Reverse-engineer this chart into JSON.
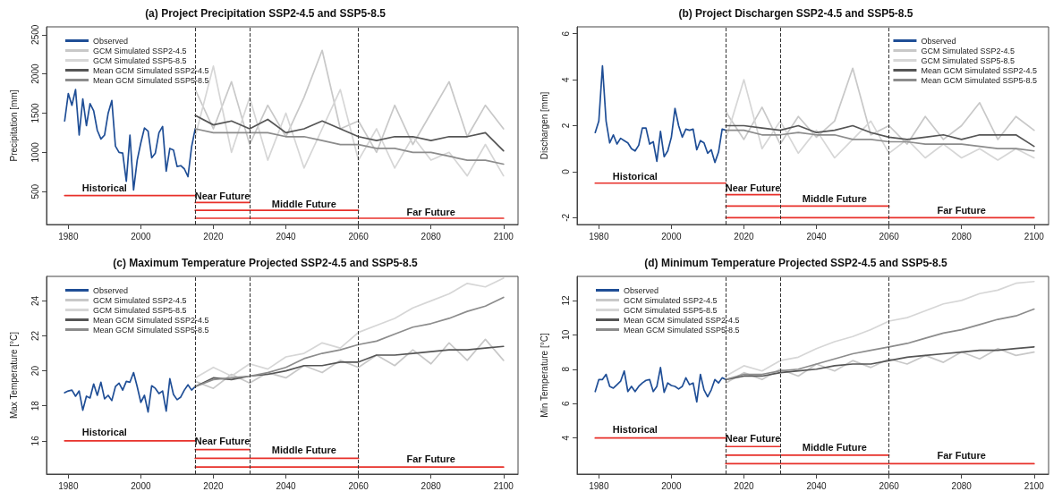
{
  "chart_data": [
    {
      "type": "line",
      "title": "(a) Project Precipitation SSP2-4.5 and SSP5-8.5",
      "ylabel": "Precipitation [mm]",
      "xlim": [
        1974,
        2104
      ],
      "xticks": [
        1980,
        2000,
        2020,
        2040,
        2060,
        2080,
        2100
      ],
      "ylim": [
        80,
        2600
      ],
      "yticks": [
        500,
        1000,
        1500,
        2000,
        2500
      ],
      "legend": "top left",
      "line_style": "solid",
      "series": [
        {
          "name": "Observed",
          "color": "#1f4e96",
          "x": [
            1979,
            1980,
            1981,
            1982,
            1983,
            1984,
            1985,
            1986,
            1987,
            1988,
            1989,
            1990,
            1991,
            1992,
            1993,
            1994,
            1995,
            1996,
            1997,
            1998,
            1999,
            2000,
            2001,
            2002,
            2003,
            2004,
            2005,
            2006,
            2007,
            2008,
            2009,
            2010,
            2011,
            2012,
            2013,
            2014,
            2015
          ],
          "values": [
            1400,
            1750,
            1600,
            1800,
            1220,
            1680,
            1340,
            1620,
            1530,
            1280,
            1170,
            1220,
            1500,
            1660,
            1080,
            1000,
            990,
            630,
            1220,
            520,
            900,
            1120,
            1310,
            1270,
            930,
            990,
            1250,
            1330,
            760,
            1050,
            1030,
            820,
            830,
            790,
            690,
            1070,
            1300
          ]
        },
        {
          "name": "GCM Simulated SSP2-4.5",
          "color": "#c8c8c8",
          "x": [
            2015,
            2020,
            2025,
            2030,
            2035,
            2040,
            2045,
            2050,
            2055,
            2060,
            2065,
            2070,
            2075,
            2080,
            2085,
            2090,
            2095,
            2100
          ],
          "values": [
            1800,
            1300,
            1900,
            1100,
            1600,
            1200,
            1700,
            2300,
            1300,
            1400,
            1000,
            1600,
            1100,
            1500,
            1900,
            1200,
            1600,
            1300
          ]
        },
        {
          "name": "GCM Simulated SSP5-8.5",
          "color": "#d6d6d6",
          "x": [
            2015,
            2020,
            2025,
            2030,
            2035,
            2040,
            2045,
            2050,
            2055,
            2060,
            2065,
            2070,
            2075,
            2080,
            2085,
            2090,
            2095,
            2100
          ],
          "values": [
            1200,
            2100,
            1000,
            1700,
            900,
            1500,
            800,
            1300,
            1800,
            900,
            1300,
            800,
            1200,
            900,
            1000,
            700,
            1100,
            700
          ]
        },
        {
          "name": "Mean GCM Simulated SSP2-4.5",
          "color": "#555555",
          "x": [
            2015,
            2020,
            2025,
            2030,
            2035,
            2040,
            2045,
            2050,
            2055,
            2060,
            2065,
            2070,
            2075,
            2080,
            2085,
            2090,
            2095,
            2100
          ],
          "values": [
            1470,
            1350,
            1400,
            1300,
            1420,
            1250,
            1300,
            1400,
            1300,
            1200,
            1150,
            1200,
            1200,
            1150,
            1200,
            1200,
            1250,
            1020
          ]
        },
        {
          "name": "Mean GCM Simulated SSP5-8.5",
          "color": "#8c8c8c",
          "x": [
            2015,
            2020,
            2025,
            2030,
            2035,
            2040,
            2045,
            2050,
            2055,
            2060,
            2065,
            2070,
            2075,
            2080,
            2085,
            2090,
            2095,
            2100
          ],
          "values": [
            1300,
            1250,
            1250,
            1250,
            1250,
            1200,
            1200,
            1150,
            1100,
            1100,
            1050,
            1050,
            1000,
            1000,
            950,
            900,
            900,
            850
          ]
        },
        {
          "color": "#e8302a",
          "x": [
            1979,
            2015
          ],
          "values": [
            450,
            450
          ]
        },
        {
          "color": "#e8302a",
          "x": [
            2015,
            2030
          ],
          "values": [
            360,
            360
          ]
        },
        {
          "color": "#e8302a",
          "x": [
            2015,
            2060
          ],
          "values": [
            260,
            260
          ]
        },
        {
          "color": "#e8302a",
          "x": [
            2015,
            2100
          ],
          "values": [
            160,
            160
          ]
        }
      ],
      "ref_lines": [
        {
          "axis": "x",
          "value": 2015,
          "color": "#333333",
          "line_style": "dashed"
        },
        {
          "axis": "x",
          "value": 2030,
          "color": "#333333",
          "line_style": "dashed"
        },
        {
          "axis": "x",
          "value": 2060,
          "color": "#333333",
          "line_style": "dashed"
        }
      ],
      "annotations": [
        {
          "text": "Historical",
          "x": 1990,
          "y": 480
        },
        {
          "text": "Near Future",
          "x": 2022.5,
          "y": 380
        },
        {
          "text": "Middle Future",
          "x": 2045,
          "y": 280
        },
        {
          "text": "Far Future",
          "x": 2080,
          "y": 180
        }
      ]
    },
    {
      "type": "line",
      "title": "(b) Project Dischargen SSP2-4.5 and SSP5-8.5",
      "ylabel": "Dischargen [mm]",
      "xlim": [
        1974,
        2104
      ],
      "xticks": [
        1980,
        2000,
        2020,
        2040,
        2060,
        2080,
        2100
      ],
      "ylim": [
        -2.3,
        6.3
      ],
      "yticks": [
        -2,
        0,
        2,
        4,
        6
      ],
      "legend": "top right",
      "line_style": "solid",
      "series": [
        {
          "name": "Observed",
          "color": "#1f4e96",
          "x": [
            1979,
            1980,
            1981,
            1982,
            1983,
            1984,
            1985,
            1986,
            1987,
            1988,
            1989,
            1990,
            1991,
            1992,
            1993,
            1994,
            1995,
            1996,
            1997,
            1998,
            1999,
            2000,
            2001,
            2002,
            2003,
            2004,
            2005,
            2006,
            2007,
            2008,
            2009,
            2010,
            2011,
            2012,
            2013,
            2014,
            2015
          ],
          "values": [
            1.7,
            2.2,
            4.6,
            2.2,
            1.25,
            1.6,
            1.2,
            1.45,
            1.35,
            1.25,
            1.0,
            0.9,
            1.15,
            1.9,
            1.9,
            1.2,
            1.3,
            0.45,
            1.75,
            0.65,
            0.9,
            1.5,
            2.75,
            2.0,
            1.5,
            1.85,
            1.8,
            1.85,
            0.95,
            1.35,
            1.25,
            0.8,
            0.95,
            0.4,
            0.85,
            1.85,
            1.8
          ]
        },
        {
          "name": "GCM Simulated SSP2-4.5",
          "color": "#c8c8c8",
          "x": [
            2015,
            2020,
            2025,
            2030,
            2035,
            2040,
            2045,
            2050,
            2055,
            2060,
            2065,
            2070,
            2075,
            2080,
            2085,
            2090,
            2095,
            2100
          ],
          "values": [
            2.6,
            1.4,
            2.8,
            1.2,
            2.4,
            1.5,
            2.2,
            4.5,
            1.6,
            2.0,
            1.2,
            2.4,
            1.4,
            2.0,
            3.0,
            1.4,
            2.4,
            1.8
          ]
        },
        {
          "name": "GCM Simulated SSP5-8.5",
          "color": "#d6d6d6",
          "x": [
            2015,
            2020,
            2025,
            2030,
            2035,
            2040,
            2045,
            2050,
            2055,
            2060,
            2065,
            2070,
            2075,
            2080,
            2085,
            2090,
            2095,
            2100
          ],
          "values": [
            1.4,
            4.0,
            1.0,
            2.2,
            0.8,
            1.8,
            0.6,
            1.4,
            2.2,
            0.8,
            1.4,
            0.6,
            1.2,
            0.6,
            1.0,
            0.5,
            1.0,
            0.6
          ]
        },
        {
          "name": "Mean GCM Simulated SSP2-4.5",
          "color": "#555555",
          "x": [
            2015,
            2020,
            2025,
            2030,
            2035,
            2040,
            2045,
            2050,
            2055,
            2060,
            2065,
            2070,
            2075,
            2080,
            2085,
            2090,
            2095,
            2100
          ],
          "values": [
            2.0,
            2.0,
            1.9,
            1.8,
            2.0,
            1.7,
            1.8,
            2.0,
            1.7,
            1.5,
            1.4,
            1.5,
            1.6,
            1.4,
            1.6,
            1.6,
            1.6,
            1.1
          ]
        },
        {
          "name": "Mean GCM Simulated SSP5-8.5",
          "color": "#8c8c8c",
          "x": [
            2015,
            2020,
            2025,
            2030,
            2035,
            2040,
            2045,
            2050,
            2055,
            2060,
            2065,
            2070,
            2075,
            2080,
            2085,
            2090,
            2095,
            2100
          ],
          "values": [
            1.8,
            1.8,
            1.6,
            1.6,
            1.7,
            1.6,
            1.6,
            1.4,
            1.4,
            1.3,
            1.3,
            1.2,
            1.2,
            1.2,
            1.1,
            1.0,
            1.0,
            0.9
          ]
        },
        {
          "color": "#e8302a",
          "x": [
            1979,
            2015
          ],
          "values": [
            -0.5,
            -0.5
          ]
        },
        {
          "color": "#e8302a",
          "x": [
            2015,
            2030
          ],
          "values": [
            -1.0,
            -1.0
          ]
        },
        {
          "color": "#e8302a",
          "x": [
            2015,
            2060
          ],
          "values": [
            -1.5,
            -1.5
          ]
        },
        {
          "color": "#e8302a",
          "x": [
            2015,
            2100
          ],
          "values": [
            -2.0,
            -2.0
          ]
        }
      ],
      "ref_lines": [
        {
          "axis": "x",
          "value": 2015,
          "color": "#333333",
          "line_style": "dashed"
        },
        {
          "axis": "x",
          "value": 2030,
          "color": "#333333",
          "line_style": "dashed"
        },
        {
          "axis": "x",
          "value": 2060,
          "color": "#333333",
          "line_style": "dashed"
        }
      ],
      "annotations": [
        {
          "text": "Historical",
          "x": 1990,
          "y": -0.4
        },
        {
          "text": "Near Future",
          "x": 2022.5,
          "y": -0.9
        },
        {
          "text": "Middle Future",
          "x": 2045,
          "y": -1.4
        },
        {
          "text": "Far Future",
          "x": 2080,
          "y": -1.9
        }
      ]
    },
    {
      "type": "line",
      "title": "(c) Maximum Temperature Projected SSP2-4.5 and SSP5-8.5",
      "ylabel": "Max Temperature [°C]",
      "xlim": [
        1974,
        2104
      ],
      "xticks": [
        1980,
        2000,
        2020,
        2040,
        2060,
        2080,
        2100
      ],
      "ylim": [
        14.1,
        25.4
      ],
      "yticks": [
        16,
        18,
        20,
        22,
        24
      ],
      "legend": "top left",
      "line_style": "solid",
      "series": [
        {
          "name": "Observed",
          "color": "#1f4e96",
          "x": [
            1979,
            1980,
            1981,
            1982,
            1983,
            1984,
            1985,
            1986,
            1987,
            1988,
            1989,
            1990,
            1991,
            1992,
            1993,
            1994,
            1995,
            1996,
            1997,
            1998,
            1999,
            2000,
            2001,
            2002,
            2003,
            2004,
            2005,
            2006,
            2007,
            2008,
            2009,
            2010,
            2011,
            2012,
            2013,
            2014,
            2015
          ],
          "values": [
            18.75,
            18.85,
            18.9,
            18.55,
            18.85,
            17.75,
            18.55,
            18.45,
            19.25,
            18.6,
            19.35,
            18.4,
            18.6,
            18.3,
            19.1,
            19.3,
            18.9,
            19.4,
            19.35,
            19.9,
            19.1,
            18.2,
            18.6,
            17.65,
            19.15,
            19.0,
            18.7,
            18.85,
            17.7,
            19.55,
            18.65,
            18.35,
            18.5,
            18.9,
            19.2,
            18.9,
            19.1
          ]
        },
        {
          "name": "GCM Simulated SSP2-4.5",
          "color": "#c8c8c8",
          "x": [
            2015,
            2020,
            2025,
            2030,
            2035,
            2040,
            2045,
            2050,
            2055,
            2060,
            2065,
            2070,
            2075,
            2080,
            2085,
            2090,
            2095,
            2100
          ],
          "values": [
            19.4,
            19.0,
            19.8,
            19.3,
            19.9,
            19.6,
            20.3,
            19.9,
            20.6,
            20.2,
            20.9,
            20.3,
            21.2,
            20.4,
            21.6,
            20.6,
            21.8,
            20.6
          ]
        },
        {
          "name": "GCM Simulated SSP5-8.5",
          "color": "#d6d6d6",
          "x": [
            2015,
            2020,
            2025,
            2030,
            2035,
            2040,
            2045,
            2050,
            2055,
            2060,
            2065,
            2070,
            2075,
            2080,
            2085,
            2090,
            2095,
            2100
          ],
          "values": [
            19.6,
            20.2,
            19.7,
            20.4,
            20.1,
            20.8,
            21.0,
            21.6,
            21.3,
            22.2,
            22.6,
            23.0,
            23.6,
            24.0,
            24.4,
            25.0,
            24.8,
            25.3
          ]
        },
        {
          "name": "Mean GCM Simulated SSP2-4.5",
          "color": "#555555",
          "x": [
            2015,
            2020,
            2025,
            2030,
            2035,
            2040,
            2045,
            2050,
            2055,
            2060,
            2065,
            2070,
            2075,
            2080,
            2085,
            2090,
            2095,
            2100
          ],
          "values": [
            19.1,
            19.6,
            19.5,
            19.7,
            19.8,
            20.0,
            20.3,
            20.3,
            20.5,
            20.5,
            20.9,
            20.9,
            21.0,
            21.1,
            21.2,
            21.2,
            21.3,
            21.4
          ]
        },
        {
          "name": "Mean GCM Simulated SSP5-8.5",
          "color": "#8c8c8c",
          "x": [
            2015,
            2020,
            2025,
            2030,
            2035,
            2040,
            2045,
            2050,
            2055,
            2060,
            2065,
            2070,
            2075,
            2080,
            2085,
            2090,
            2095,
            2100
          ],
          "values": [
            19.1,
            19.5,
            19.6,
            19.7,
            19.9,
            20.2,
            20.7,
            21.0,
            21.2,
            21.5,
            21.7,
            22.1,
            22.5,
            22.7,
            23.0,
            23.4,
            23.7,
            24.2
          ]
        },
        {
          "color": "#e8302a",
          "x": [
            1979,
            2015
          ],
          "values": [
            16,
            16
          ]
        },
        {
          "color": "#e8302a",
          "x": [
            2015,
            2030
          ],
          "values": [
            15.5,
            15.5
          ]
        },
        {
          "color": "#e8302a",
          "x": [
            2015,
            2060
          ],
          "values": [
            15.0,
            15.0
          ]
        },
        {
          "color": "#e8302a",
          "x": [
            2015,
            2100
          ],
          "values": [
            14.5,
            14.5
          ]
        }
      ],
      "ref_lines": [
        {
          "axis": "x",
          "value": 2015,
          "color": "#333333",
          "line_style": "dashed"
        },
        {
          "axis": "x",
          "value": 2030,
          "color": "#333333",
          "line_style": "dashed"
        },
        {
          "axis": "x",
          "value": 2060,
          "color": "#333333",
          "line_style": "dashed"
        }
      ],
      "annotations": [
        {
          "text": "Historical",
          "x": 1990,
          "y": 16.2
        },
        {
          "text": "Near Future",
          "x": 2022.5,
          "y": 15.7
        },
        {
          "text": "Middle Future",
          "x": 2045,
          "y": 15.2
        },
        {
          "text": "Far Future",
          "x": 2080,
          "y": 14.7
        }
      ]
    },
    {
      "type": "line",
      "title": "(d) Minimum Temperature Projected SSP2-4.5 and SSP5-8.5",
      "ylabel": "Min Temperature [°C]",
      "xlim": [
        1974,
        2104
      ],
      "xticks": [
        1980,
        2000,
        2020,
        2040,
        2060,
        2080,
        2100
      ],
      "ylim": [
        1.9,
        13.4
      ],
      "yticks": [
        4,
        6,
        8,
        10,
        12
      ],
      "legend": "top left",
      "line_style": "solid",
      "series": [
        {
          "name": "Observed",
          "color": "#1f4e96",
          "x": [
            1979,
            1980,
            1981,
            1982,
            1983,
            1984,
            1985,
            1986,
            1987,
            1988,
            1989,
            1990,
            1991,
            1992,
            1993,
            1994,
            1995,
            1996,
            1997,
            1998,
            1999,
            2000,
            2001,
            2002,
            2003,
            2004,
            2005,
            2006,
            2007,
            2008,
            2009,
            2010,
            2011,
            2012,
            2013,
            2014,
            2015
          ],
          "values": [
            6.7,
            7.4,
            7.4,
            7.7,
            7.0,
            6.9,
            7.1,
            7.3,
            7.9,
            6.7,
            7.0,
            6.7,
            7.0,
            7.2,
            7.35,
            7.4,
            6.7,
            7.0,
            8.1,
            6.65,
            7.2,
            7.05,
            7.0,
            6.85,
            7.0,
            7.5,
            7.1,
            7.2,
            6.1,
            7.7,
            6.8,
            6.4,
            6.8,
            7.4,
            7.2,
            7.5,
            7.4
          ]
        },
        {
          "name": "GCM Simulated SSP2-4.5",
          "color": "#c8c8c8",
          "x": [
            2015,
            2020,
            2025,
            2030,
            2035,
            2040,
            2045,
            2050,
            2055,
            2060,
            2065,
            2070,
            2075,
            2080,
            2085,
            2090,
            2095,
            2100
          ],
          "values": [
            7.2,
            7.8,
            7.4,
            8.0,
            7.6,
            8.3,
            7.9,
            8.5,
            8.1,
            8.6,
            8.3,
            8.8,
            8.4,
            9.0,
            8.6,
            9.2,
            8.8,
            9.0
          ]
        },
        {
          "name": "GCM Simulated SSP5-8.5",
          "color": "#d6d6d6",
          "x": [
            2015,
            2020,
            2025,
            2030,
            2035,
            2040,
            2045,
            2050,
            2055,
            2060,
            2065,
            2070,
            2075,
            2080,
            2085,
            2090,
            2095,
            2100
          ],
          "values": [
            7.6,
            8.2,
            7.9,
            8.5,
            8.7,
            9.2,
            9.6,
            9.9,
            10.3,
            10.8,
            11.0,
            11.4,
            11.8,
            12.0,
            12.4,
            12.6,
            13.0,
            13.1
          ]
        },
        {
          "name": "Mean GCM Simulated SSP2-4.5",
          "color": "#555555",
          "x": [
            2015,
            2020,
            2025,
            2030,
            2035,
            2040,
            2045,
            2050,
            2055,
            2060,
            2065,
            2070,
            2075,
            2080,
            2085,
            2090,
            2095,
            2100
          ],
          "values": [
            7.4,
            7.6,
            7.6,
            7.8,
            7.9,
            8.0,
            8.2,
            8.3,
            8.3,
            8.5,
            8.7,
            8.8,
            8.9,
            9.0,
            9.1,
            9.1,
            9.2,
            9.3
          ]
        },
        {
          "name": "Mean GCM Simulated SSP5-8.5",
          "color": "#8c8c8c",
          "x": [
            2015,
            2020,
            2025,
            2030,
            2035,
            2040,
            2045,
            2050,
            2055,
            2060,
            2065,
            2070,
            2075,
            2080,
            2085,
            2090,
            2095,
            2100
          ],
          "values": [
            7.4,
            7.7,
            7.7,
            7.9,
            8.0,
            8.3,
            8.6,
            8.9,
            9.1,
            9.3,
            9.5,
            9.8,
            10.1,
            10.3,
            10.6,
            10.9,
            11.1,
            11.5
          ]
        },
        {
          "color": "#e8302a",
          "x": [
            1979,
            2015
          ],
          "values": [
            4,
            4
          ]
        },
        {
          "color": "#e8302a",
          "x": [
            2015,
            2030
          ],
          "values": [
            3.5,
            3.5
          ]
        },
        {
          "color": "#e8302a",
          "x": [
            2015,
            2060
          ],
          "values": [
            3.0,
            3.0
          ]
        },
        {
          "color": "#e8302a",
          "x": [
            2015,
            2100
          ],
          "values": [
            2.5,
            2.5
          ]
        }
      ],
      "ref_lines": [
        {
          "axis": "x",
          "value": 2015,
          "color": "#333333",
          "line_style": "dashed"
        },
        {
          "axis": "x",
          "value": 2030,
          "color": "#333333",
          "line_style": "dashed"
        },
        {
          "axis": "x",
          "value": 2060,
          "color": "#333333",
          "line_style": "dashed"
        }
      ],
      "annotations": [
        {
          "text": "Historical",
          "x": 1990,
          "y": 4.2
        },
        {
          "text": "Near Future",
          "x": 2022.5,
          "y": 3.7
        },
        {
          "text": "Middle Future",
          "x": 2045,
          "y": 3.2
        },
        {
          "text": "Far Future",
          "x": 2080,
          "y": 2.7
        }
      ]
    }
  ]
}
